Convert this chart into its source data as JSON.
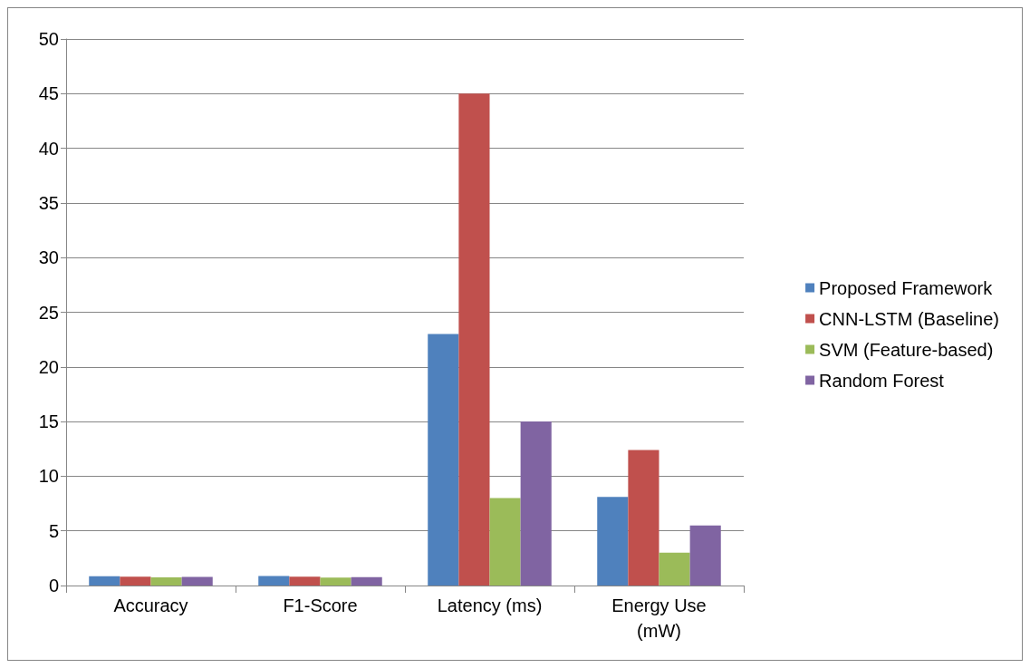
{
  "chart_data": {
    "type": "bar",
    "categories": [
      "Accuracy",
      "F1-Score",
      "Latency (ms)",
      "Energy Use\n(mW)"
    ],
    "series": [
      {
        "name": "Proposed Framework",
        "color": "#4f81bd",
        "values": [
          0.86,
          0.87,
          23,
          8.1
        ]
      },
      {
        "name": "CNN-LSTM (Baseline)",
        "color": "#c0504d",
        "values": [
          0.81,
          0.8,
          45,
          12.4
        ]
      },
      {
        "name": "SVM (Feature-based)",
        "color": "#9bbb59",
        "values": [
          0.74,
          0.72,
          8,
          3
        ]
      },
      {
        "name": "Random Forest",
        "color": "#8064a2",
        "values": [
          0.78,
          0.76,
          15,
          5.5
        ]
      }
    ],
    "ylim": [
      0,
      50
    ],
    "yticks": [
      0,
      5,
      10,
      15,
      20,
      25,
      30,
      35,
      40,
      45,
      50
    ],
    "grid": "y",
    "legend": "right"
  }
}
